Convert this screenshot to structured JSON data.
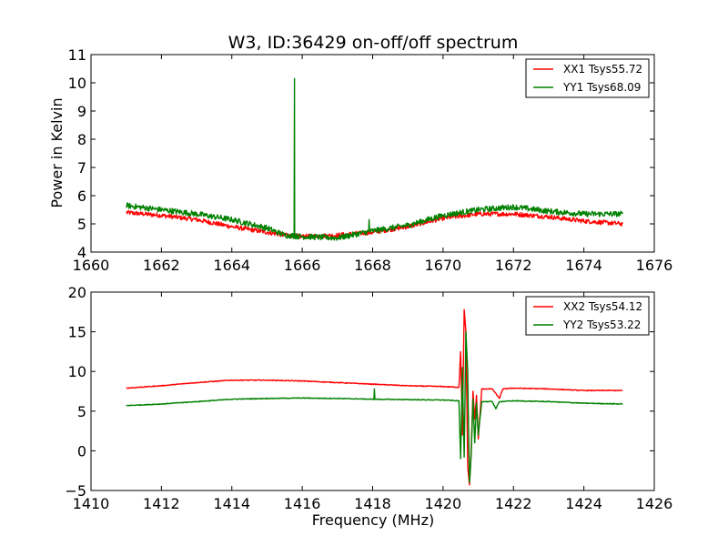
{
  "chart_data": [
    {
      "type": "line",
      "title": "W3, ID:36429 on-off/off spectrum",
      "xlabel": "",
      "ylabel": "Power in Kelvin",
      "xlim": [
        1660,
        1676
      ],
      "ylim": [
        4,
        11
      ],
      "xticks": [
        "1660",
        "1662",
        "1664",
        "1666",
        "1668",
        "1670",
        "1672",
        "1674",
        "1676"
      ],
      "yticks": [
        "4",
        "5",
        "6",
        "7",
        "8",
        "9",
        "10",
        "11"
      ],
      "legend_position": "top-right",
      "series": [
        {
          "name": "XX1 Tsys55.72",
          "color": "#ff0000",
          "x": [
            1661.0,
            1662.0,
            1663.0,
            1664.0,
            1665.0,
            1665.5,
            1666.0,
            1667.0,
            1668.0,
            1669.0,
            1670.0,
            1671.0,
            1672.0,
            1673.0,
            1674.0,
            1675.1
          ],
          "y": [
            5.4,
            5.3,
            5.15,
            4.9,
            4.7,
            4.6,
            4.55,
            4.6,
            4.7,
            4.9,
            5.2,
            5.35,
            5.35,
            5.25,
            5.1,
            5.0
          ],
          "noise": 0.08,
          "spikes": []
        },
        {
          "name": "YY1 Tsys68.09",
          "color": "#008000",
          "x": [
            1661.0,
            1662.0,
            1663.0,
            1664.0,
            1665.0,
            1665.5,
            1666.0,
            1667.0,
            1668.0,
            1669.0,
            1670.0,
            1671.0,
            1672.0,
            1673.0,
            1674.0,
            1675.1
          ],
          "y": [
            5.65,
            5.5,
            5.35,
            5.15,
            4.85,
            4.6,
            4.55,
            4.5,
            4.75,
            4.95,
            5.3,
            5.5,
            5.6,
            5.45,
            5.35,
            5.35
          ],
          "noise": 0.1,
          "spikes": [
            {
              "x": 1665.78,
              "y": 10.15,
              "w": 0.03
            },
            {
              "x": 1667.9,
              "y": 5.15,
              "w": 0.03
            }
          ]
        }
      ]
    },
    {
      "type": "line",
      "title": "",
      "xlabel": "Frequency (MHz)",
      "ylabel": "",
      "xlim": [
        1410,
        1426
      ],
      "ylim": [
        -5,
        20
      ],
      "xticks": [
        "1410",
        "1412",
        "1414",
        "1416",
        "1418",
        "1420",
        "1422",
        "1424",
        "1426"
      ],
      "yticks": [
        "−5",
        "0",
        "5",
        "10",
        "15",
        "20"
      ],
      "legend_position": "top-right",
      "series": [
        {
          "name": "XX2 Tsys54.12",
          "color": "#ff0000",
          "x": [
            1411.0,
            1412.0,
            1413.0,
            1414.0,
            1415.0,
            1416.0,
            1417.0,
            1418.0,
            1419.0,
            1420.0,
            1420.45,
            1420.5,
            1420.55,
            1420.6,
            1420.65,
            1420.7,
            1420.75,
            1420.8,
            1420.85,
            1420.9,
            1420.95,
            1421.0,
            1421.1,
            1421.2,
            1421.4,
            1421.6,
            1421.7,
            1422.0,
            1423.0,
            1424.0,
            1425.1
          ],
          "y": [
            7.9,
            8.2,
            8.6,
            8.9,
            8.9,
            8.8,
            8.6,
            8.4,
            8.2,
            8.1,
            8.0,
            12.5,
            2.0,
            17.8,
            15.0,
            -2.0,
            -4.3,
            0.0,
            7.5,
            4.0,
            7.0,
            1.5,
            7.8,
            7.8,
            7.8,
            6.6,
            7.8,
            7.9,
            7.8,
            7.6,
            7.6
          ],
          "noise": 0.05,
          "spikes": []
        },
        {
          "name": "YY2 Tsys53.22",
          "color": "#008000",
          "x": [
            1411.0,
            1412.0,
            1413.0,
            1414.0,
            1415.0,
            1416.0,
            1417.0,
            1418.0,
            1419.0,
            1420.0,
            1420.45,
            1420.5,
            1420.55,
            1420.6,
            1420.65,
            1420.7,
            1420.75,
            1420.8,
            1420.85,
            1420.9,
            1420.95,
            1421.0,
            1421.1,
            1421.2,
            1421.4,
            1421.5,
            1421.6,
            1422.0,
            1423.0,
            1424.0,
            1425.1
          ],
          "y": [
            5.7,
            5.9,
            6.2,
            6.5,
            6.6,
            6.65,
            6.6,
            6.5,
            6.45,
            6.4,
            6.3,
            -1.0,
            10.5,
            -0.8,
            15.0,
            10.0,
            -4.0,
            -0.5,
            6.5,
            1.0,
            6.0,
            2.0,
            6.2,
            6.2,
            6.2,
            5.3,
            6.2,
            6.3,
            6.2,
            6.0,
            5.9
          ],
          "noise": 0.05,
          "spikes": [
            {
              "x": 1418.05,
              "y": 7.8,
              "w": 0.03
            }
          ]
        }
      ]
    }
  ]
}
